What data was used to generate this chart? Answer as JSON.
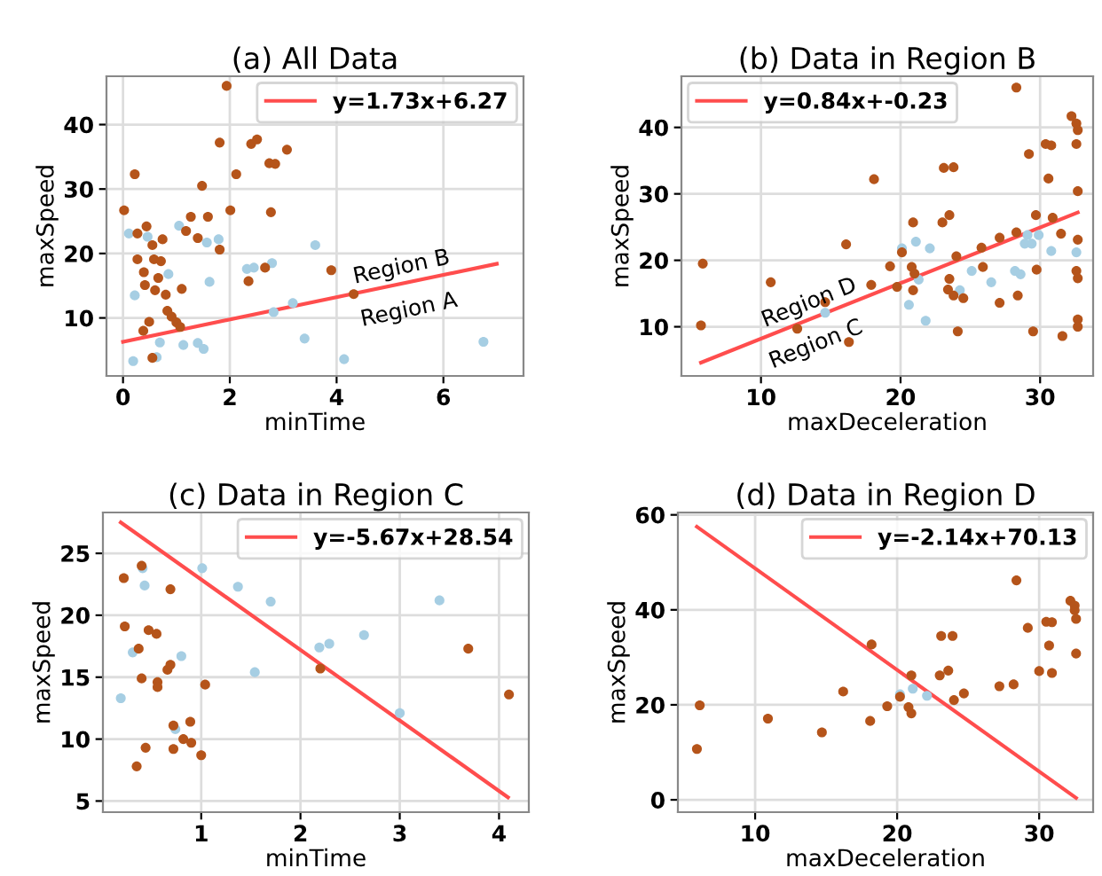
{
  "chart_data": [
    {
      "type": "scatter",
      "title": "(a) All Data",
      "xlabel": "minTime",
      "ylabel": "maxSpeed",
      "xlim": [
        -0.31,
        7.5
      ],
      "ylim": [
        1.0,
        47.5
      ],
      "xticks": [
        0,
        2,
        4,
        6
      ],
      "yticks": [
        10,
        20,
        30,
        40
      ],
      "grid": true,
      "legend": "top right",
      "marker": "circle",
      "series": [
        {
          "color": "#b5541a",
          "x": [
            0.02,
            0.22,
            0.27,
            0.27,
            0.44,
            0.39,
            0.41,
            0.38,
            0.49,
            0.55,
            0.58,
            0.6,
            0.66,
            0.71,
            0.74,
            0.8,
            0.83,
            0.91,
            1.0,
            1.07,
            1.1,
            1.18,
            1.27,
            1.4,
            1.48,
            1.59,
            1.81,
            1.81,
            1.94,
            2.01,
            2.12,
            2.35,
            2.4,
            2.51,
            2.66,
            2.74,
            2.77,
            2.85,
            3.07,
            3.9,
            4.32,
            0.55
          ],
          "values": [
            26.7,
            32.3,
            23.1,
            19.1,
            24.2,
            17.1,
            15.1,
            8.0,
            9.4,
            21.3,
            19.1,
            14.3,
            16.2,
            18.8,
            22.2,
            13.6,
            11.1,
            10.2,
            9.3,
            8.6,
            14.5,
            23.5,
            25.7,
            22.4,
            30.5,
            25.7,
            37.2,
            20.6,
            46.0,
            26.7,
            32.3,
            15.7,
            37.0,
            37.7,
            17.8,
            34.0,
            26.4,
            33.9,
            36.1,
            17.4,
            13.7,
            3.8
          ]
        },
        {
          "color": "#a6cee3",
          "x": [
            0.11,
            0.22,
            0.46,
            0.69,
            0.63,
            0.19,
            0.85,
            1.05,
            1.13,
            1.4,
            1.51,
            1.57,
            1.62,
            1.79,
            2.32,
            2.45,
            2.79,
            2.82,
            3.18,
            3.4,
            3.6,
            4.14,
            6.75
          ],
          "values": [
            23.1,
            13.5,
            22.6,
            6.2,
            3.9,
            3.3,
            16.8,
            24.3,
            5.8,
            6.1,
            5.2,
            21.7,
            15.6,
            22.2,
            17.6,
            17.8,
            18.5,
            10.9,
            12.3,
            6.8,
            21.3,
            3.6,
            6.3
          ]
        },
        {
          "type": "line",
          "name": "y=1.73x+6.27",
          "color": "#ff4d4d",
          "marker": "none",
          "x": [
            0,
            7.0
          ],
          "values": [
            6.3,
            18.4
          ]
        }
      ],
      "annotations": [
        "Region B",
        "Region A"
      ]
    },
    {
      "type": "scatter",
      "title": "(b) Data in Region B",
      "xlabel": "maxDeceleration",
      "ylabel": "maxSpeed",
      "xlim": [
        4.3,
        33.8
      ],
      "ylim": [
        2.6,
        47.7
      ],
      "xticks": [
        10,
        20,
        30
      ],
      "yticks": [
        10,
        20,
        30,
        40
      ],
      "grid": true,
      "legend": "top left",
      "marker": "circle",
      "series": [
        {
          "color": "#b5541a",
          "x": [
            5.83,
            5.7,
            10.7,
            12.6,
            14.6,
            16.1,
            16.3,
            17.9,
            18.1,
            19.25,
            19.75,
            20.1,
            20.8,
            20.9,
            21.0,
            20.9,
            23.0,
            23.1,
            23.8,
            23.5,
            23.5,
            23.4,
            23.8,
            24.0,
            24.5,
            24.1,
            25.8,
            25.9,
            27.1,
            27.1,
            28.3,
            28.4,
            28.3,
            29.2,
            29.7,
            29.75,
            29.5,
            30.4,
            30.8,
            30.6,
            30.9,
            31.5,
            31.6,
            32.25,
            32.6,
            32.7,
            32.6,
            32.7,
            32.7,
            32.6,
            32.7,
            32.7,
            32.7
          ],
          "values": [
            19.5,
            10.2,
            16.7,
            9.7,
            13.7,
            22.4,
            7.7,
            16.3,
            32.2,
            19.1,
            16.0,
            21.2,
            19.0,
            15.5,
            18.0,
            25.7,
            25.7,
            33.9,
            34.0,
            26.8,
            17.2,
            15.6,
            14.7,
            20.6,
            14.3,
            9.3,
            21.9,
            19.0,
            23.4,
            13.6,
            24.2,
            14.7,
            46.0,
            36.0,
            26.8,
            18.6,
            9.3,
            37.5,
            37.3,
            32.3,
            26.4,
            24.0,
            8.6,
            41.7,
            40.6,
            39.6,
            37.5,
            30.4,
            23.1,
            18.4,
            17.3,
            11.1,
            10.0
          ]
        },
        {
          "color": "#a6cee3",
          "x": [
            20.1,
            20.6,
            21.1,
            21.3,
            21.8,
            22.1,
            24.25,
            25.1,
            26.5,
            28.2,
            28.6,
            28.9,
            29.1,
            29.4,
            29.9,
            30.8,
            32.6,
            14.6
          ],
          "values": [
            21.8,
            13.3,
            22.8,
            17.1,
            10.9,
            21.8,
            15.5,
            18.4,
            16.7,
            18.4,
            17.9,
            22.5,
            23.8,
            22.5,
            23.8,
            21.4,
            21.2,
            12.1
          ]
        },
        {
          "type": "line",
          "name": "y=0.84x+-0.23",
          "color": "#ff4d4d",
          "marker": "none",
          "x": [
            5.7,
            32.7
          ],
          "values": [
            4.6,
            27.2
          ]
        }
      ],
      "annotations": [
        "Region D",
        "Region C"
      ]
    },
    {
      "type": "scatter",
      "title": "(c) Data in Region C",
      "xlabel": "minTime",
      "ylabel": "maxSpeed",
      "xlim": [
        0.01,
        4.3
      ],
      "ylim": [
        4.1,
        28.3
      ],
      "xticks": [
        1,
        2,
        3,
        4
      ],
      "yticks": [
        5,
        10,
        15,
        20,
        25
      ],
      "grid": true,
      "legend": "top right",
      "marker": "circle",
      "series": [
        {
          "color": "#b5541a",
          "x": [
            0.22,
            0.23,
            0.4,
            0.37,
            0.4,
            0.44,
            0.35,
            0.47,
            0.55,
            0.56,
            0.56,
            0.69,
            0.66,
            0.69,
            0.72,
            0.72,
            0.82,
            0.89,
            0.9,
            1.0,
            1.04,
            2.2,
            3.69,
            4.1
          ],
          "values": [
            23.0,
            19.1,
            24.0,
            17.3,
            14.9,
            9.3,
            7.8,
            18.8,
            18.5,
            14.6,
            14.2,
            22.1,
            15.6,
            16.0,
            11.1,
            9.2,
            10.0,
            11.4,
            9.7,
            8.7,
            14.4,
            15.7,
            17.3,
            13.6
          ]
        },
        {
          "color": "#a6cee3",
          "x": [
            0.19,
            0.31,
            0.43,
            0.41,
            0.8,
            0.74,
            1.01,
            1.37,
            1.54,
            1.7,
            2.19,
            2.29,
            2.64,
            3.0,
            3.4
          ],
          "values": [
            13.3,
            17.0,
            22.4,
            23.8,
            16.7,
            10.8,
            23.8,
            22.3,
            15.4,
            21.1,
            17.4,
            17.7,
            18.4,
            12.1,
            21.2
          ]
        },
        {
          "type": "line",
          "name": "y=-5.67x+28.54",
          "color": "#ff4d4d",
          "marker": "none",
          "x": [
            0.19,
            4.09
          ],
          "values": [
            27.5,
            5.3
          ]
        }
      ]
    },
    {
      "type": "scatter",
      "title": "(d) Data in Region D",
      "xlabel": "maxDeceleration",
      "ylabel": "maxSpeed",
      "xlim": [
        4.56,
        33.8
      ],
      "ylim": [
        -2.6,
        60.5
      ],
      "xticks": [
        10,
        20,
        30
      ],
      "yticks": [
        0,
        20,
        40,
        60
      ],
      "grid": true,
      "legend": "top right",
      "marker": "circle",
      "series": [
        {
          "color": "#b5541a",
          "x": [
            5.9,
            6.1,
            10.9,
            14.7,
            16.2,
            18.1,
            18.2,
            19.3,
            20.2,
            20.8,
            21.0,
            21.0,
            23.0,
            23.1,
            23.9,
            23.6,
            24.0,
            24.7,
            27.2,
            28.2,
            28.4,
            29.2,
            30.0,
            30.5,
            30.9,
            30.7,
            30.9,
            32.2,
            32.5,
            32.5,
            32.6,
            32.6
          ],
          "values": [
            10.7,
            19.9,
            17.1,
            14.2,
            22.8,
            16.6,
            32.7,
            19.7,
            21.7,
            19.5,
            18.2,
            26.2,
            26.2,
            34.5,
            34.5,
            27.2,
            21.0,
            22.4,
            23.9,
            24.3,
            46.2,
            36.2,
            27.1,
            37.5,
            37.4,
            32.5,
            26.7,
            41.9,
            40.9,
            39.9,
            38.1,
            30.8
          ]
        },
        {
          "color": "#a6cee3",
          "x": [
            20.2,
            21.1,
            22.1
          ],
          "values": [
            22.2,
            23.4,
            21.9
          ]
        },
        {
          "type": "line",
          "name": "y=-2.14x+70.13",
          "color": "#ff4d4d",
          "marker": "none",
          "x": [
            5.9,
            32.6
          ],
          "values": [
            57.5,
            0.4
          ]
        }
      ]
    }
  ]
}
